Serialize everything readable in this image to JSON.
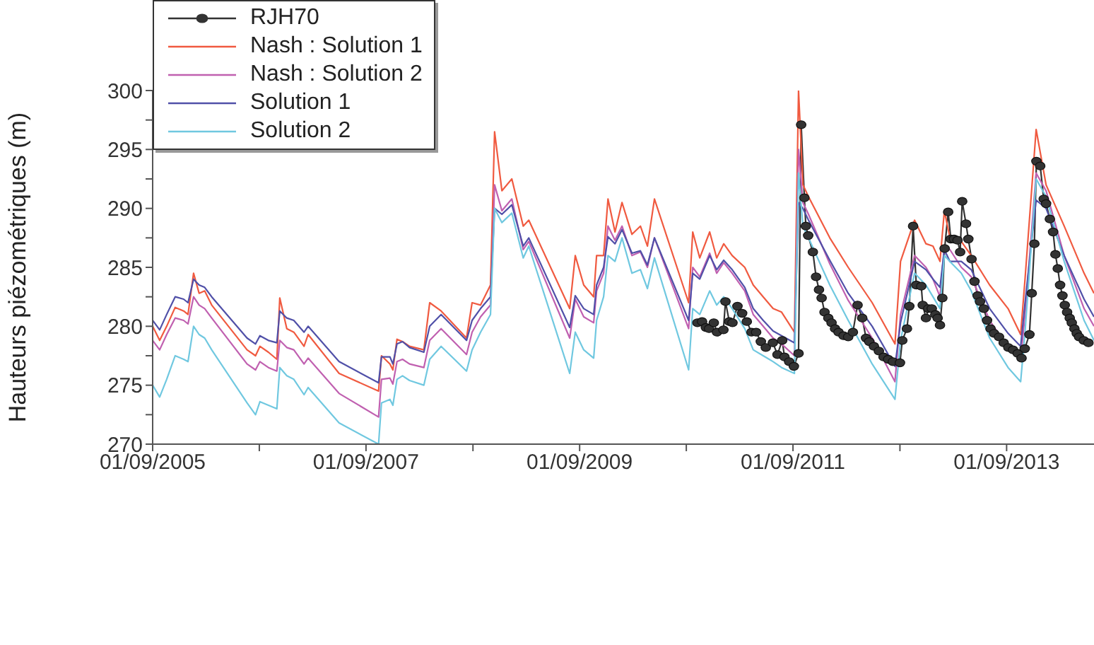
{
  "chart_data": {
    "type": "line",
    "ylabel": "Hauteurs piézométriques (m)",
    "legend": "top left",
    "line_style": "solid",
    "xlim": [
      "2005-09-01",
      "2014-06-27"
    ],
    "xticks": [
      {
        "value": "2005-09-01",
        "label": "01/09/2005"
      },
      {
        "value": "2006-09-01",
        "label": null
      },
      {
        "value": "2007-09-01",
        "label": "01/09/2007"
      },
      {
        "value": "2008-09-01",
        "label": null
      },
      {
        "value": "2009-09-01",
        "label": "01/09/2009"
      },
      {
        "value": "2010-09-01",
        "label": null
      },
      {
        "value": "2011-09-01",
        "label": "01/09/2011"
      },
      {
        "value": "2012-09-01",
        "label": null
      },
      {
        "value": "2013-09-01",
        "label": "01/09/2013"
      }
    ],
    "ylim": [
      270,
      300
    ],
    "yticks": [
      270,
      {
        "value": 272.5,
        "label": null
      },
      275,
      {
        "value": 277.5,
        "label": null
      },
      280,
      {
        "value": 282.5,
        "label": null
      },
      285,
      {
        "value": 287.5,
        "label": null
      },
      290,
      {
        "value": 292.5,
        "label": null
      },
      295,
      {
        "value": 297.5,
        "label": null
      },
      300
    ],
    "x": [
      "2005-09-01",
      "2005-09-25",
      "2005-10-19",
      "2005-11-17",
      "2005-12-16",
      "2005-12-31",
      "2006-01-19",
      "2006-02-07",
      "2006-02-26",
      "2006-03-22",
      "2006-07-21",
      "2006-08-19",
      "2006-09-03",
      "2006-10-02",
      "2006-10-31",
      "2006-11-10",
      "2006-12-04",
      "2006-12-28",
      "2007-02-01",
      "2007-02-15",
      "2007-06-01",
      "2007-10-14",
      "2007-10-24",
      "2007-11-22",
      "2007-12-02",
      "2007-12-16",
      "2008-01-04",
      "2008-01-28",
      "2008-03-17",
      "2008-04-06",
      "2008-05-15",
      "2008-08-10",
      "2008-08-29",
      "2008-09-27",
      "2008-10-31",
      "2008-11-14",
      "2008-12-09",
      "2009-01-12",
      "2009-02-20",
      "2009-03-11",
      "2009-07-29",
      "2009-08-17",
      "2009-09-15",
      "2009-10-19",
      "2009-10-29",
      "2009-11-22",
      "2009-12-07",
      "2009-12-31",
      "2010-01-24",
      "2010-02-27",
      "2010-03-28",
      "2010-04-21",
      "2010-05-15",
      "2010-09-09",
      "2010-09-23",
      "2010-10-17",
      "2010-11-20",
      "2010-12-14",
      "2011-01-07",
      "2011-02-05",
      "2011-03-20",
      "2011-04-18",
      "2011-05-22",
      "2011-06-25",
      "2011-07-24",
      "2011-09-06",
      "2011-09-20",
      "2011-10-05",
      "2011-10-24",
      "2012-01-05",
      "2012-03-08",
      "2012-05-29",
      "2012-08-15",
      "2012-09-03",
      "2012-10-21",
      "2012-11-29",
      "2012-12-23",
      "2013-01-16",
      "2013-01-31",
      "2013-02-19",
      "2013-03-30",
      "2013-05-03",
      "2013-07-05",
      "2013-09-06",
      "2013-10-19",
      "2013-11-03",
      "2013-12-11",
      "2014-01-14",
      "2014-03-17",
      "2014-05-24",
      "2014-06-27"
    ],
    "series": [
      {
        "name": "RJH70",
        "color": "#333333",
        "marker": "circle",
        "x": [
          "2010-10-09",
          "2010-10-25",
          "2010-11-07",
          "2010-11-18",
          "2010-12-04",
          "2010-12-15",
          "2011-01-06",
          "2011-01-13",
          "2011-01-26",
          "2011-02-06",
          "2011-02-23",
          "2011-03-11",
          "2011-03-27",
          "2011-04-12",
          "2011-04-28",
          "2011-05-14",
          "2011-05-31",
          "2011-06-24",
          "2011-07-10",
          "2011-07-26",
          "2011-08-03",
          "2011-08-19",
          "2011-09-04",
          "2011-09-20",
          "2011-09-29",
          "2011-10-10",
          "2011-10-15",
          "2011-10-23",
          "2011-11-08",
          "2011-11-19",
          "2011-11-29",
          "2011-12-08",
          "2011-12-18",
          "2011-12-31",
          "2012-01-11",
          "2012-01-23",
          "2012-02-04",
          "2012-02-21",
          "2012-03-08",
          "2012-03-24",
          "2012-04-09",
          "2012-04-25",
          "2012-05-08",
          "2012-05-19",
          "2012-06-04",
          "2012-06-21",
          "2012-07-07",
          "2012-07-23",
          "2012-08-08",
          "2012-09-01",
          "2012-09-09",
          "2012-09-25",
          "2012-10-03",
          "2012-10-16",
          "2012-10-27",
          "2012-11-13",
          "2012-11-18",
          "2012-11-29",
          "2012-12-07",
          "2012-12-19",
          "2012-12-31",
          "2013-01-08",
          "2013-01-16",
          "2013-01-24",
          "2013-02-01",
          "2013-02-13",
          "2013-02-22",
          "2013-03-05",
          "2013-03-17",
          "2013-03-26",
          "2013-04-02",
          "2013-04-15",
          "2013-04-23",
          "2013-05-04",
          "2013-05-14",
          "2013-05-25",
          "2013-06-02",
          "2013-06-15",
          "2013-06-26",
          "2013-07-08",
          "2013-07-20",
          "2013-08-06",
          "2013-08-22",
          "2013-09-07",
          "2013-09-23",
          "2013-10-09",
          "2013-10-22",
          "2013-11-02",
          "2013-11-18",
          "2013-11-26",
          "2013-12-05",
          "2013-12-12",
          "2013-12-25",
          "2014-01-06",
          "2014-01-14",
          "2014-01-27",
          "2014-02-07",
          "2014-02-15",
          "2014-02-23",
          "2014-03-03",
          "2014-03-11",
          "2014-03-19",
          "2014-03-27",
          "2014-04-05",
          "2014-04-12",
          "2014-04-21",
          "2014-04-29",
          "2014-05-07",
          "2014-05-23",
          "2014-06-08"
        ],
        "values": [
          280.3,
          280.4,
          279.9,
          279.8,
          280.3,
          279.5,
          279.7,
          282.1,
          280.4,
          280.3,
          281.7,
          281.1,
          280.4,
          279.5,
          279.5,
          278.7,
          278.2,
          278.6,
          277.6,
          278.8,
          277.4,
          277.0,
          276.6,
          277.7,
          297.1,
          290.9,
          288.5,
          287.7,
          286.3,
          284.2,
          283.1,
          282.4,
          281.2,
          280.7,
          280.3,
          279.8,
          279.5,
          279.2,
          279.1,
          279.5,
          281.8,
          280.7,
          279.0,
          278.7,
          278.3,
          277.9,
          277.4,
          277.2,
          277.0,
          276.9,
          278.8,
          279.8,
          281.7,
          288.5,
          283.5,
          283.4,
          281.8,
          280.7,
          281.5,
          281.5,
          281.0,
          280.7,
          280.1,
          282.4,
          286.6,
          289.7,
          287.4,
          287.4,
          287.3,
          286.3,
          290.6,
          288.7,
          287.4,
          285.7,
          283.8,
          282.6,
          282.1,
          281.5,
          280.5,
          279.8,
          279.4,
          279.1,
          278.6,
          278.2,
          278.0,
          277.7,
          277.3,
          278.1,
          279.3,
          282.8,
          287.0,
          294.0,
          293.6,
          290.8,
          290.4,
          289.1,
          288.0,
          286.1,
          284.9,
          283.5,
          282.6,
          281.8,
          281.2,
          280.7,
          280.3,
          279.8,
          279.4,
          279.1,
          278.8,
          278.6
        ]
      },
      {
        "name": "Nash : Solution 1",
        "color": "#f05a40",
        "marker": "none",
        "values": [
          280,
          278.8,
          280,
          281.6,
          281.3,
          281,
          284.5,
          282.8,
          283,
          281.8,
          278,
          277.5,
          278.3,
          277.8,
          277.2,
          282.4,
          279.8,
          279.5,
          278.3,
          279.3,
          276,
          274.5,
          277.5,
          276.8,
          276.3,
          278.9,
          278.7,
          278.3,
          278,
          282,
          281.3,
          279,
          282,
          281.8,
          283.5,
          296.5,
          291.5,
          292.5,
          288.5,
          289,
          281.5,
          286,
          283.5,
          282.5,
          286,
          286,
          290.8,
          288,
          290.5,
          287.8,
          288.5,
          286.8,
          290.8,
          282,
          288,
          285.8,
          288,
          285.8,
          287,
          286,
          285,
          283.5,
          282.5,
          281.5,
          281.2,
          279.5,
          300,
          292,
          291,
          287.5,
          285,
          282,
          278.5,
          285.5,
          289,
          287,
          286.8,
          285.5,
          289.8,
          287.5,
          287.2,
          286,
          283.5,
          281.5,
          279.3,
          284,
          296.7,
          292,
          288.5,
          284.5,
          282.8
        ]
      },
      {
        "name": "Nash : Solution 2",
        "color": "#c060b0",
        "marker": "none",
        "values": [
          278.8,
          278,
          279.3,
          280.7,
          280.5,
          280.2,
          282.5,
          281.8,
          281.5,
          280.7,
          276.8,
          276.3,
          277,
          276.5,
          276.2,
          278.8,
          278.2,
          278,
          276.8,
          277.3,
          274.3,
          272.3,
          275.5,
          275.6,
          275.1,
          277,
          277.2,
          276.8,
          276.5,
          278.8,
          279.8,
          277.6,
          279.5,
          280.8,
          281.8,
          292,
          289.8,
          290.8,
          286.5,
          287.2,
          279,
          282.3,
          280.8,
          280.3,
          283,
          284.5,
          288.5,
          287.3,
          288.5,
          286,
          286.3,
          285,
          287.5,
          279.8,
          285,
          284.2,
          286.2,
          284.5,
          285.4,
          284.5,
          283,
          281,
          280,
          279,
          278.5,
          277.5,
          295,
          290.5,
          289.5,
          285.3,
          282.2,
          279,
          275.3,
          281,
          286,
          285,
          284,
          282.5,
          286.8,
          286.5,
          285,
          284.2,
          280.5,
          278.2,
          277.2,
          281,
          293,
          291.5,
          286,
          281.5,
          280
        ]
      },
      {
        "name": "Solution 1",
        "color": "#5050a8",
        "marker": "none",
        "values": [
          280.5,
          279.7,
          281,
          282.5,
          282.3,
          282,
          284,
          283.5,
          283.3,
          282.5,
          279,
          278.5,
          279.2,
          278.8,
          278.6,
          281.3,
          280.7,
          280.5,
          279.5,
          280,
          277,
          275.2,
          277.4,
          277.4,
          276.8,
          278.5,
          278.7,
          278.2,
          277.8,
          280,
          281,
          278.8,
          280.5,
          281.5,
          282.5,
          290,
          289.5,
          290.3,
          286.8,
          287.5,
          279.9,
          282.6,
          281.5,
          281,
          283.5,
          285,
          287.6,
          287,
          288.2,
          286.2,
          286.4,
          285.2,
          287.5,
          280.5,
          284.5,
          284,
          286,
          284.8,
          285.6,
          284.8,
          283.3,
          281.5,
          280.5,
          279.6,
          279.2,
          278.6,
          290.5,
          290,
          289,
          285.6,
          282.8,
          280,
          276.6,
          280.3,
          285.5,
          284.8,
          284,
          283.3,
          286.5,
          285.5,
          285.5,
          284.8,
          281.5,
          279.4,
          278.3,
          282,
          290.7,
          290,
          286,
          282.3,
          280.8
        ]
      },
      {
        "name": "Solution 2",
        "color": "#70c8e0",
        "marker": "none",
        "values": [
          275,
          274,
          275.5,
          277.5,
          277.2,
          277,
          280,
          279.3,
          279,
          278,
          273.5,
          272.5,
          273.6,
          273.3,
          273,
          276.5,
          275.8,
          275.5,
          274.2,
          274.8,
          271.8,
          270,
          273.5,
          273.8,
          273.3,
          275.5,
          275.8,
          275.4,
          275,
          277.2,
          278.3,
          276.2,
          278,
          279.5,
          281,
          290,
          288.8,
          289.6,
          285.8,
          286.8,
          276,
          279.5,
          278,
          277.3,
          280.5,
          282.5,
          286,
          285.5,
          287.5,
          284.5,
          284.8,
          283.2,
          285.8,
          276.3,
          281.5,
          281,
          283,
          281.8,
          282.5,
          281.5,
          279.8,
          278,
          277.5,
          277,
          276.5,
          276,
          293,
          288.5,
          287.5,
          283.5,
          280.5,
          276.8,
          273.8,
          278.8,
          284.5,
          283.5,
          282.5,
          281.5,
          286,
          285.5,
          284.5,
          283,
          279,
          276.5,
          275.3,
          279.5,
          292.5,
          291,
          285.5,
          280.5,
          278.8
        ]
      }
    ]
  }
}
